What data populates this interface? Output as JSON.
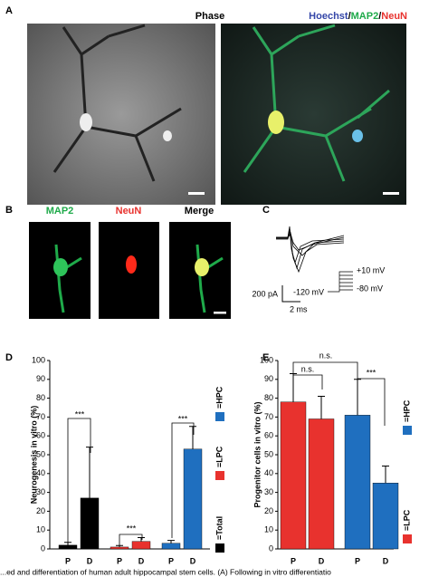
{
  "panels": {
    "A": {
      "letter": "A",
      "phase": "Phase",
      "stain_parts": [
        "Hoechst",
        "/",
        "MAP2",
        "/",
        "NeuN"
      ]
    },
    "B": {
      "letter": "B",
      "labels": [
        "MAP2",
        "NeuN",
        "Merge"
      ]
    },
    "C": {
      "letter": "C",
      "current_scale": "200 pA",
      "time_scale": "2 ms",
      "hold": "-120 mV",
      "step_top": "+10 mV",
      "step_bottom": "-80 mV"
    },
    "caption": "...ed and differentiation of human adult hippocampal stem cells. (A) Following in vitro differentiatio"
  },
  "chart_data": [
    {
      "type": "bar",
      "letter": "D",
      "y_label": "Neurogenesis in vitro (%)",
      "categories": [
        "P",
        "D"
      ],
      "series": [
        {
          "name": "=Total",
          "color": "#000000",
          "values": [
            2,
            27
          ],
          "errors": [
            1.5,
            27
          ]
        },
        {
          "name": "=LPC",
          "color": "#e8322e",
          "values": [
            1,
            4
          ],
          "errors": [
            0.8,
            2
          ]
        },
        {
          "name": "=HPC",
          "color": "#1f6fbf",
          "values": [
            3,
            53
          ],
          "errors": [
            1.5,
            12
          ]
        }
      ],
      "ylim": [
        0,
        100
      ],
      "yticks": [
        0,
        10,
        20,
        30,
        40,
        50,
        60,
        70,
        80,
        90,
        100
      ],
      "annotations": [
        "***",
        "***",
        "***"
      ]
    },
    {
      "type": "bar",
      "letter": "E",
      "y_label": "Progenitor cells in vitro (%)",
      "categories": [
        "P",
        "D"
      ],
      "series": [
        {
          "name": "=LPC",
          "color": "#e8322e",
          "values": [
            78,
            69
          ],
          "errors": [
            15,
            12
          ]
        },
        {
          "name": "=HPC",
          "color": "#1f6fbf",
          "values": [
            71,
            35
          ],
          "errors": [
            19,
            9
          ]
        }
      ],
      "ylim": [
        0,
        100
      ],
      "yticks": [
        0,
        10,
        20,
        30,
        40,
        50,
        60,
        70,
        80,
        90,
        100
      ],
      "annotations": [
        "n.s.",
        "n.s.",
        "***"
      ]
    }
  ]
}
